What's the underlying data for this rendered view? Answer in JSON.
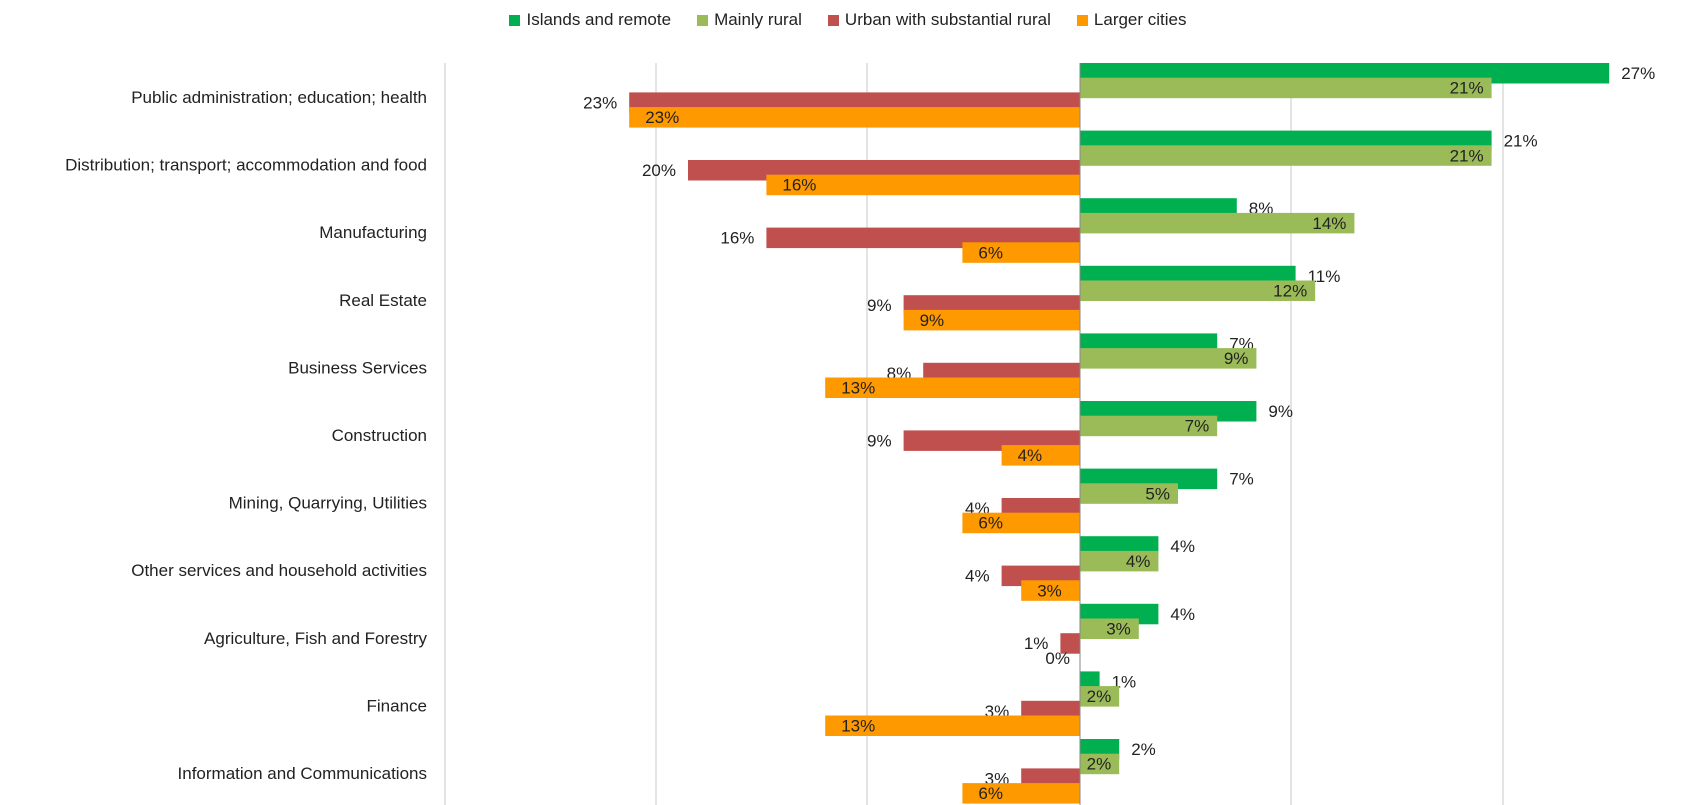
{
  "chart_data": {
    "type": "bar",
    "orientation": "horizontal",
    "categories": [
      "Public administration; education; health",
      "Distribution; transport; accommodation and food",
      "Manufacturing",
      "Real Estate",
      "Business Services",
      "Construction",
      "Mining, Quarrying, Utilities",
      "Other services and household activities",
      "Agriculture, Fish and Forestry",
      "Finance",
      "Information and Communications"
    ],
    "series": [
      {
        "name": "Islands and remote",
        "color": "#00b050",
        "side": "right",
        "values": [
          27,
          21,
          8,
          11,
          7,
          9,
          7,
          4,
          4,
          1,
          2
        ],
        "labels": [
          "27%",
          "21%",
          "8%",
          "11%",
          "7%",
          "9%",
          "7%",
          "4%",
          "4%",
          "1%",
          "2%"
        ]
      },
      {
        "name": "Mainly rural",
        "color": "#9bbb59",
        "side": "right",
        "values": [
          21,
          21,
          14,
          12,
          9,
          7,
          5,
          4,
          3,
          2,
          2
        ],
        "labels": [
          "21%",
          "21%",
          "14%",
          "12%",
          "9%",
          "7%",
          "5%",
          "4%",
          "3%",
          "2%",
          "2%"
        ]
      },
      {
        "name": "Urban with substantial rural",
        "color": "#c0504d",
        "side": "left",
        "values": [
          23,
          20,
          16,
          9,
          8,
          9,
          4,
          4,
          1,
          3,
          3
        ],
        "labels": [
          "23%",
          "20%",
          "16%",
          "9%",
          "8%",
          "9%",
          "4%",
          "4%",
          "1%",
          "3%",
          "3%"
        ]
      },
      {
        "name": "Larger cities",
        "color": "#ff9900",
        "side": "left",
        "values": [
          23,
          16,
          6,
          9,
          13,
          4,
          6,
          3,
          0,
          13,
          6
        ],
        "labels": [
          "23%",
          "16%",
          "6%",
          "9%",
          "13%",
          "4%",
          "6%",
          "3%",
          "0%",
          "13%",
          "6%"
        ]
      }
    ],
    "legend_position": "top",
    "gridlines": "vertical"
  }
}
